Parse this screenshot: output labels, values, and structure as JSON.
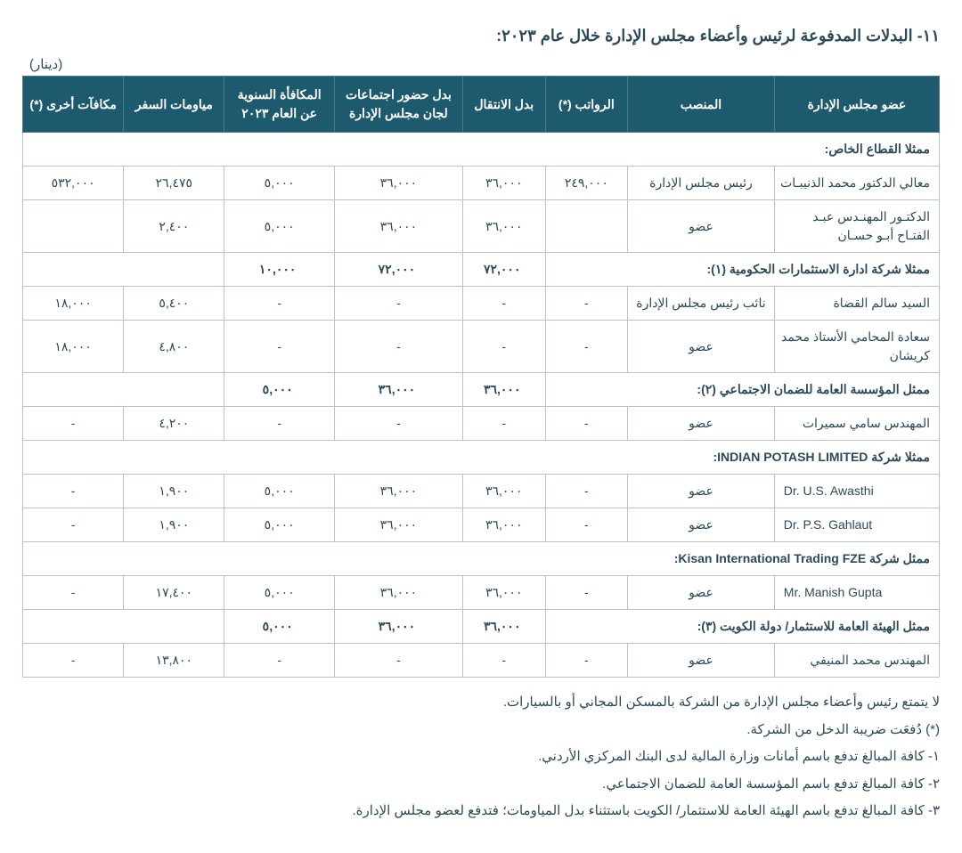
{
  "title": "١١- البدلات المدفوعة لرئيس وأعضاء مجلس الإدارة خلال عام ٢٠٢٣:",
  "unit": "(دينار)",
  "headers": {
    "member": "عضو مجلس الإدارة",
    "position": "المنصب",
    "salaries": "الرواتب (*)",
    "transport": "بدل الانتقال",
    "attendance": "بدل حضور اجتماعات لجان مجلس الإدارة",
    "annual_bonus": "المكافأة السنوية عن العام ٢٠٢٣",
    "travel_per_diem": "مياومات السفر",
    "other_bonuses": "مكافآت أخرى (*)"
  },
  "sections": {
    "private": "ممثلا القطاع الخاص:",
    "gov_inv": "ممثلا شركة ادارة الاستثمارات الحكومية (١):",
    "ssc": "ممثل المؤسسة العامة للضمان الاجتماعي (٢):",
    "ipl": "ممثلا شركة INDIAN POTASH LIMITED:",
    "kisan": "ممثل شركة Kisan International Trading FZE:",
    "kuwait": "ممثل الهيئة العامة للاستثمار/ دولة الكويت (٣):"
  },
  "rows": {
    "dhunaibat": {
      "name": "معالي الدكتور محمد الذنيبـات",
      "position": "رئيس مجلس الإدارة",
      "salaries": "٢٤٩,٠٠٠",
      "transport": "٣٦,٠٠٠",
      "attendance": "٣٦,٠٠٠",
      "annual_bonus": "٥,٠٠٠",
      "travel": "٢٦,٤٧٥",
      "other": "٥٣٢,٠٠٠"
    },
    "abuhassan": {
      "name": "الدكتـور المهنـدس عبـد الفتـاح أبـو حسـان",
      "position": "عضو",
      "salaries": "",
      "transport": "٣٦,٠٠٠",
      "attendance": "٣٦,٠٠٠",
      "annual_bonus": "٥,٠٠٠",
      "travel": "٢,٤٠٠",
      "other": ""
    },
    "gov_totals": {
      "transport": "٧٢,٠٠٠",
      "attendance": "٧٢,٠٠٠",
      "annual_bonus": "١٠,٠٠٠"
    },
    "qudah": {
      "name": "السيد سالم القضاة",
      "position": "نائب رئيس مجلس الإدارة",
      "salaries": "-",
      "transport": "-",
      "attendance": "-",
      "annual_bonus": "-",
      "travel": "٥,٤٠٠",
      "other": "١٨,٠٠٠"
    },
    "kreishan": {
      "name": "سعادة المحامي الأستاذ محمد كريشان",
      "position": "عضو",
      "salaries": "-",
      "transport": "-",
      "attendance": "-",
      "annual_bonus": "-",
      "travel": "٤,٨٠٠",
      "other": "١٨,٠٠٠"
    },
    "ssc_totals": {
      "transport": "٣٦,٠٠٠",
      "attendance": "٣٦,٠٠٠",
      "annual_bonus": "٥,٠٠٠"
    },
    "smeirat": {
      "name": "المهندس سامي سميرات",
      "position": "عضو",
      "salaries": "-",
      "transport": "-",
      "attendance": "-",
      "annual_bonus": "-",
      "travel": "٤,٢٠٠",
      "other": "-"
    },
    "awasthi": {
      "name": "Dr. U.S. Awasthi",
      "position": "عضو",
      "salaries": "-",
      "transport": "٣٦,٠٠٠",
      "attendance": "٣٦,٠٠٠",
      "annual_bonus": "٥,٠٠٠",
      "travel": "١,٩٠٠",
      "other": "-"
    },
    "gahlaut": {
      "name": "Dr. P.S. Gahlaut",
      "position": "عضو",
      "salaries": "-",
      "transport": "٣٦,٠٠٠",
      "attendance": "٣٦,٠٠٠",
      "annual_bonus": "٥,٠٠٠",
      "travel": "١,٩٠٠",
      "other": "-"
    },
    "gupta": {
      "name": "Mr. Manish Gupta",
      "position": "عضو",
      "salaries": "-",
      "transport": "٣٦,٠٠٠",
      "attendance": "٣٦,٠٠٠",
      "annual_bonus": "٥,٠٠٠",
      "travel": "١٧,٤٠٠",
      "other": "-"
    },
    "kuwait_totals": {
      "transport": "٣٦,٠٠٠",
      "attendance": "٣٦,٠٠٠",
      "annual_bonus": "٥,٠٠٠"
    },
    "munaifi": {
      "name": "المهندس محمد المنيفي",
      "position": "عضو",
      "salaries": "-",
      "transport": "-",
      "attendance": "-",
      "annual_bonus": "-",
      "travel": "١٣,٨٠٠",
      "other": "-"
    }
  },
  "notes": {
    "n0": "لا يتمتع رئيس وأعضاء مجلس الإدارة من الشركة بالمسكن المجاني أو بالسيارات.",
    "n_star": "(*) دُفعَت ضريبة الدخل من الشركة.",
    "n1": "١-  كافة المبالغ تدفع باسم أمانات وزارة المالية لدى البنك المركزي الأردني.",
    "n2": "٢-  كافة المبالغ تدفع باسم المؤسسة العامة للضمان الاجتماعي.",
    "n3": "٣-  كافة المبالغ تدفع باسم الهيئة العامة للاستثمار/ الكويت باستثناء بدل المياومات؛ فتدفع لعضو مجلس الإدارة."
  }
}
